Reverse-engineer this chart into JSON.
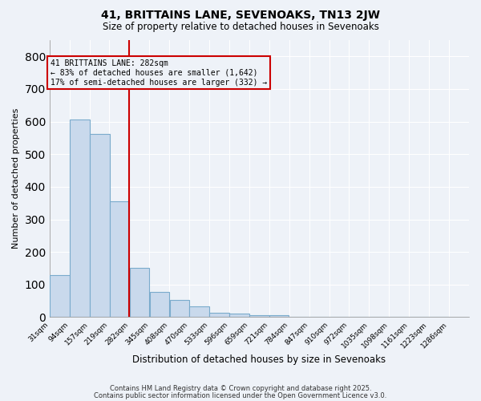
{
  "title1": "41, BRITTAINS LANE, SEVENOAKS, TN13 2JW",
  "title2": "Size of property relative to detached houses in Sevenoaks",
  "xlabel": "Distribution of detached houses by size in Sevenoaks",
  "ylabel": "Number of detached properties",
  "bar_edges": [
    31,
    94,
    157,
    219,
    282,
    345,
    408,
    470,
    533,
    596,
    659,
    721,
    784,
    847,
    910,
    972,
    1035,
    1098,
    1161,
    1223,
    1286
  ],
  "bar_heights": [
    128,
    607,
    563,
    355,
    150,
    78,
    52,
    32,
    13,
    12,
    5,
    6,
    0,
    0,
    0,
    0,
    0,
    0,
    0,
    0
  ],
  "bar_color": "#c9d9ec",
  "bar_edge_color": "#7aabcc",
  "property_line_x": 282,
  "annotation_title": "41 BRITTAINS LANE: 282sqm",
  "annotation_line1": "← 83% of detached houses are smaller (1,642)",
  "annotation_line2": "17% of semi-detached houses are larger (332) →",
  "annotation_box_color": "#cc0000",
  "vline_color": "#cc0000",
  "background_color": "#eef2f8",
  "grid_color": "#ffffff",
  "ylim": [
    0,
    850
  ],
  "yticks": [
    0,
    100,
    200,
    300,
    400,
    500,
    600,
    700,
    800
  ],
  "footer1": "Contains HM Land Registry data © Crown copyright and database right 2025.",
  "footer2": "Contains public sector information licensed under the Open Government Licence v3.0."
}
